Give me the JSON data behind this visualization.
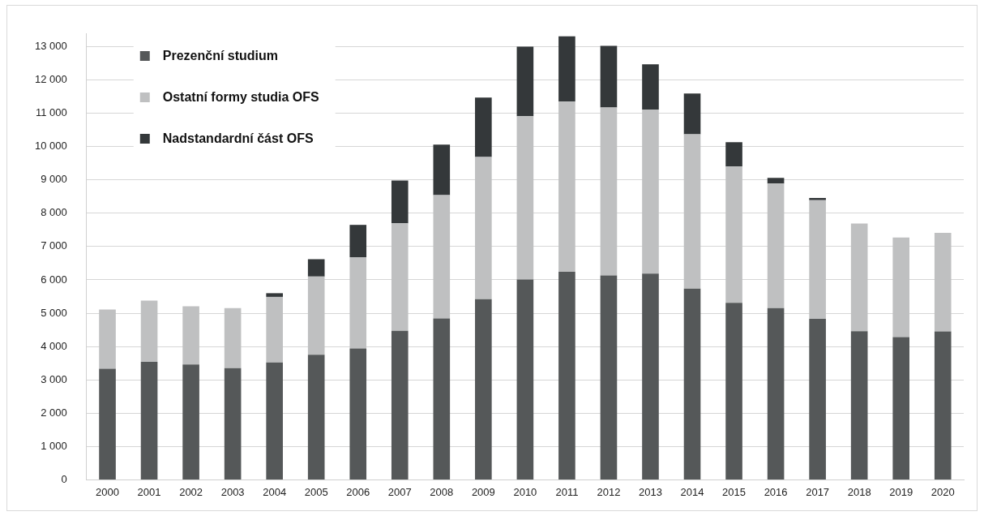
{
  "chart_data": {
    "type": "bar",
    "stacked": true,
    "categories": [
      "2000",
      "2001",
      "2002",
      "2003",
      "2004",
      "2005",
      "2006",
      "2007",
      "2008",
      "2009",
      "2010",
      "2011",
      "2012",
      "2013",
      "2014",
      "2015",
      "2016",
      "2017",
      "2018",
      "2019",
      "2020"
    ],
    "series": [
      {
        "name": "Prezenční studium",
        "color": "#555859",
        "values": [
          3330,
          3540,
          3460,
          3350,
          3520,
          3750,
          3940,
          4470,
          4840,
          5420,
          6010,
          6240,
          6130,
          6190,
          5740,
          5310,
          5150,
          4830,
          4460,
          4280,
          4450
        ]
      },
      {
        "name": "Ostatní formy studia OFS",
        "color": "#bfc0c1",
        "values": [
          1780,
          1840,
          1750,
          1800,
          1970,
          2350,
          2740,
          3230,
          3700,
          4270,
          4900,
          5110,
          5040,
          4920,
          4630,
          4090,
          3740,
          3560,
          3230,
          2990,
          2960
        ]
      },
      {
        "name": "Nadstandardní část OFS",
        "color": "#34383a",
        "values": [
          null,
          null,
          null,
          null,
          110,
          520,
          970,
          1280,
          1520,
          1780,
          2090,
          1960,
          1850,
          1360,
          1220,
          730,
          170,
          70,
          null,
          null,
          null
        ]
      }
    ],
    "ylim": [
      0,
      13400
    ],
    "yticks": [
      0,
      {
        "value": 1000,
        "label": "1 000"
      },
      {
        "value": 2000,
        "label": "2 000"
      },
      {
        "value": 3000,
        "label": "3 000"
      },
      {
        "value": 4000,
        "label": "4 000"
      },
      {
        "value": 5000,
        "label": "5 000"
      },
      {
        "value": 6000,
        "label": "6 000"
      },
      {
        "value": 7000,
        "label": "7 000"
      },
      {
        "value": 8000,
        "label": "8 000"
      },
      {
        "value": 9000,
        "label": "9 000"
      },
      {
        "value": 10000,
        "label": "10 000"
      },
      {
        "value": 11000,
        "label": "11 000"
      },
      {
        "value": 12000,
        "label": "12 000"
      },
      {
        "value": 13000,
        "label": "13 000"
      }
    ],
    "grid": "y",
    "legend": "top left"
  }
}
